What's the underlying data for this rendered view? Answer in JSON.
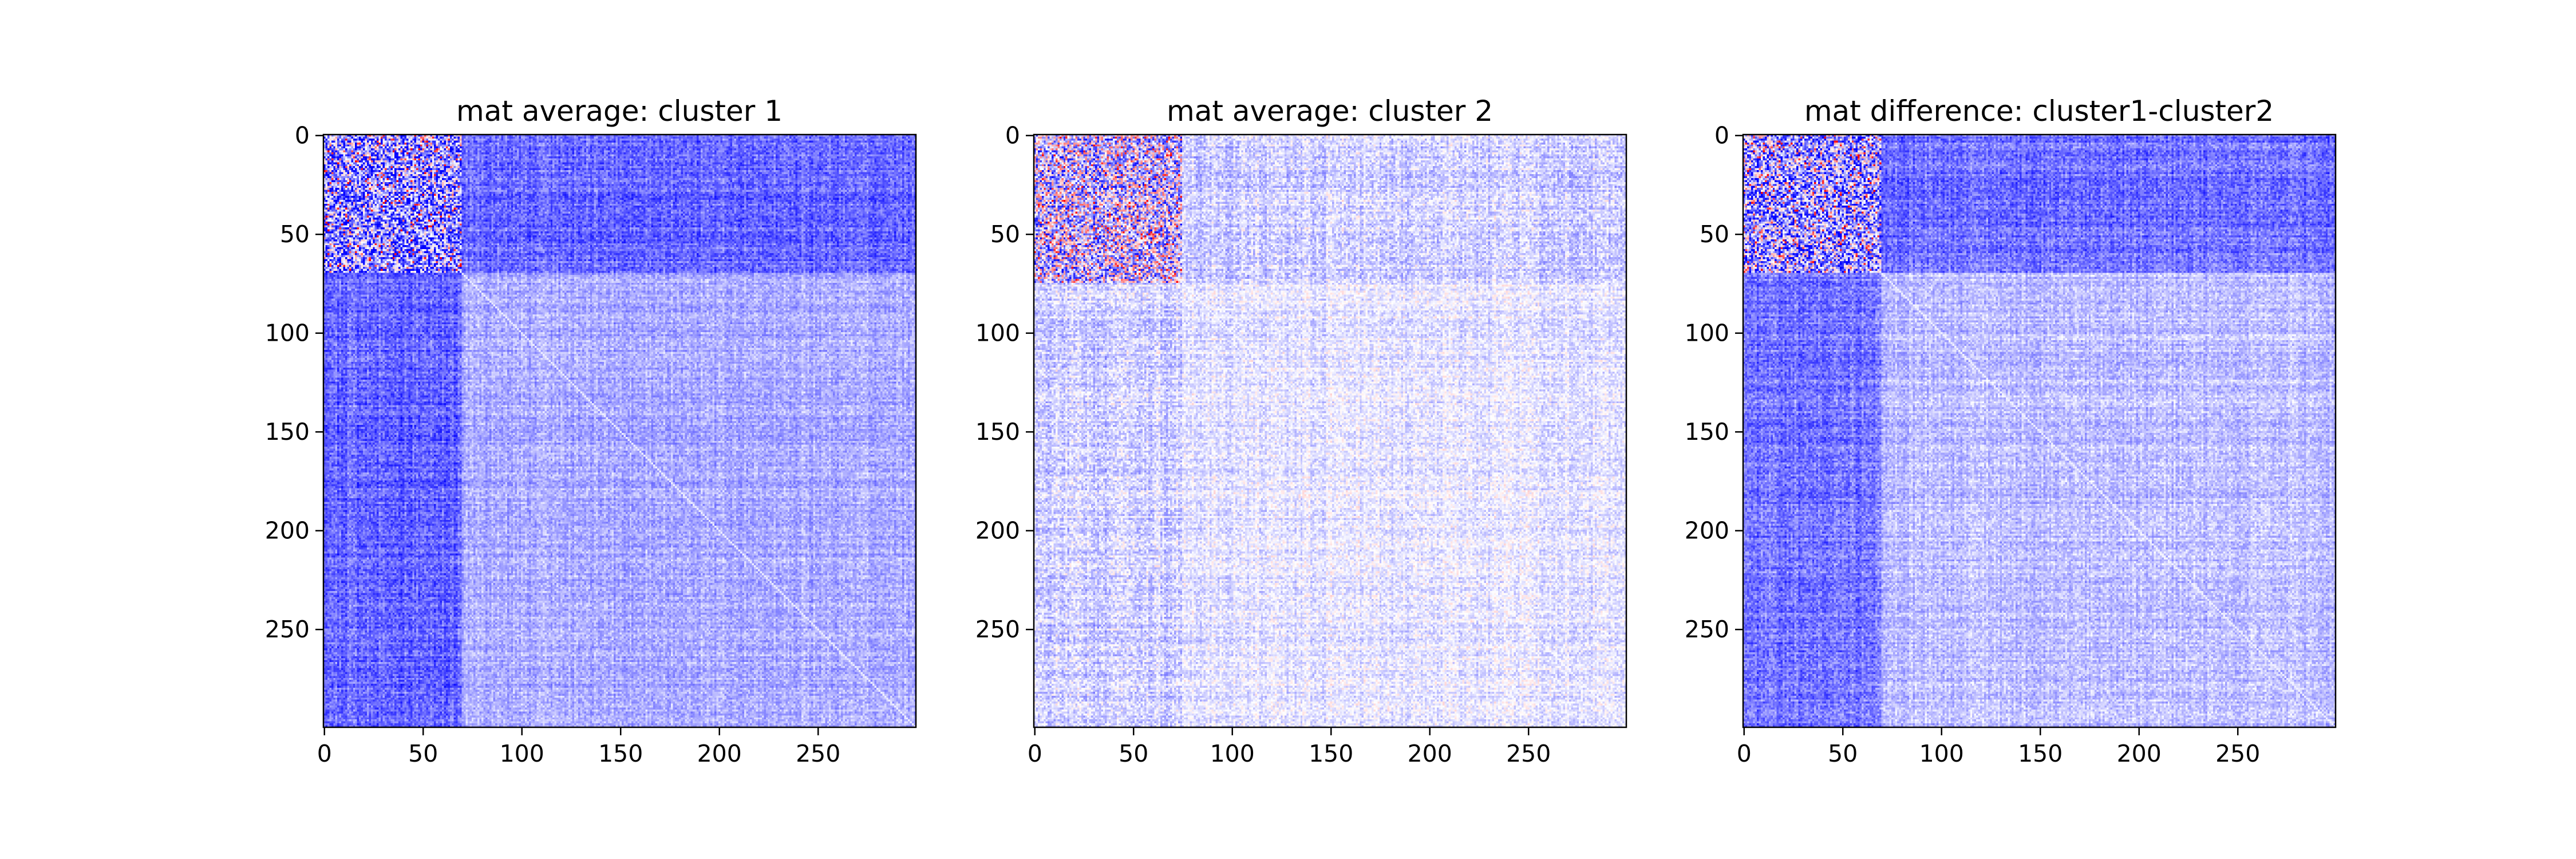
{
  "chart_data": [
    {
      "type": "heatmap",
      "title": "mat average: cluster 1",
      "xlabel": "",
      "ylabel": "",
      "matrix_size": 300,
      "xlim": [
        0,
        299
      ],
      "ylim": [
        299,
        0
      ],
      "xticks": [
        0,
        50,
        100,
        150,
        200,
        250
      ],
      "yticks": [
        0,
        50,
        100,
        150,
        200,
        250
      ],
      "colormap": "bwr",
      "colors": {
        "low": "#0000ff",
        "mid": "#ffffff",
        "high": "#ff0000"
      },
      "block_boundary": 70,
      "mean_value": {
        "upper_left_block": -0.45,
        "off_diagonal_blocks": -0.6,
        "lower_right_block": -0.33
      }
    },
    {
      "type": "heatmap",
      "title": "mat average: cluster 2",
      "xlabel": "",
      "ylabel": "",
      "matrix_size": 300,
      "xlim": [
        0,
        299
      ],
      "ylim": [
        299,
        0
      ],
      "xticks": [
        0,
        50,
        100,
        150,
        200,
        250
      ],
      "yticks": [
        0,
        50,
        100,
        150,
        200,
        250
      ],
      "colormap": "bwr",
      "colors": {
        "low": "#0000ff",
        "mid": "#ffffff",
        "high": "#ff0000"
      },
      "block_boundary": 75,
      "mean_value": {
        "upper_left_block": -0.2,
        "off_diagonal_blocks": -0.18,
        "lower_right_block": -0.1
      }
    },
    {
      "type": "heatmap",
      "title": "mat difference: cluster1-cluster2",
      "xlabel": "",
      "ylabel": "",
      "matrix_size": 300,
      "xlim": [
        0,
        299
      ],
      "ylim": [
        299,
        0
      ],
      "xticks": [
        0,
        50,
        100,
        150,
        200,
        250
      ],
      "yticks": [
        0,
        50,
        100,
        150,
        200,
        250
      ],
      "colormap": "bwr",
      "colors": {
        "low": "#0000ff",
        "mid": "#ffffff",
        "high": "#ff0000"
      },
      "block_boundary": 70,
      "mean_value": {
        "upper_left_block": -0.4,
        "off_diagonal_blocks": -0.55,
        "lower_right_block": -0.25
      }
    }
  ]
}
